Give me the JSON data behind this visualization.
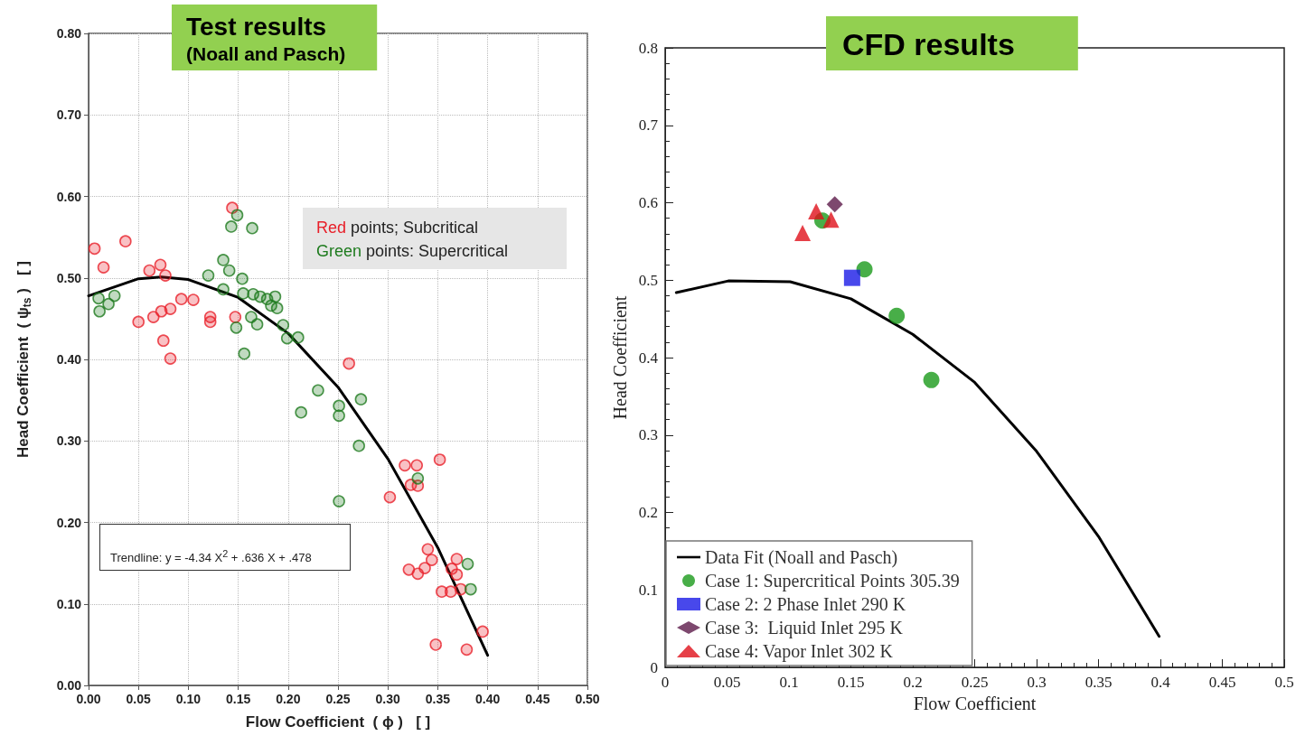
{
  "chart_data": [
    {
      "type": "scatter",
      "title": "Test results",
      "subtitle": "(Noall and Pasch)",
      "xlabel": "Flow Coefficient  ( ϕ )   [ ]",
      "ylabel": "Head Coefficient  ( ψ$_{ts}$ )   [ ]",
      "annotations": [
        "Red points; Subcritical",
        "Green points: Supercritical",
        "Trendline: y = -4.34 X$^{2}$ + .636 X + .478"
      ],
      "xlim": [
        0,
        0.5
      ],
      "xticks": [
        {
          "value": 0,
          "label": "0.00"
        },
        {
          "value": 0.05,
          "label": "0.05"
        },
        {
          "value": 0.1,
          "label": "0.10"
        },
        {
          "value": 0.15,
          "label": "0.15"
        },
        {
          "value": 0.2,
          "label": "0.20"
        },
        {
          "value": 0.25,
          "label": "0.25"
        },
        {
          "value": 0.3,
          "label": "0.30"
        },
        {
          "value": 0.35,
          "label": "0.35"
        },
        {
          "value": 0.4,
          "label": "0.40"
        },
        {
          "value": 0.45,
          "label": "0.45"
        },
        {
          "value": 0.5,
          "label": "0.50"
        }
      ],
      "ylim": [
        0,
        0.8
      ],
      "yticks": [
        {
          "value": 0,
          "label": "0.00"
        },
        {
          "value": 0.1,
          "label": "0.10"
        },
        {
          "value": 0.2,
          "label": "0.20"
        },
        {
          "value": 0.3,
          "label": "0.30"
        },
        {
          "value": 0.4,
          "label": "0.40"
        },
        {
          "value": 0.5,
          "label": "0.50"
        },
        {
          "value": 0.6,
          "label": "0.60"
        },
        {
          "value": 0.7,
          "label": "0.70"
        },
        {
          "value": 0.8,
          "label": "0.80"
        }
      ],
      "grid": true,
      "marker": "circle",
      "series": [
        {
          "color": "#e8202a",
          "x": [
            0.006,
            0.015,
            0.037,
            0.05,
            0.061,
            0.065,
            0.072,
            0.073,
            0.077,
            0.075,
            0.082,
            0.082,
            0.093,
            0.105,
            0.122,
            0.122,
            0.147,
            0.144,
            0.261,
            0.317,
            0.329,
            0.352,
            0.302,
            0.323,
            0.33,
            0.34,
            0.344,
            0.321,
            0.33,
            0.337,
            0.364,
            0.369,
            0.369,
            0.354,
            0.363,
            0.373,
            0.348,
            0.379,
            0.395
          ],
          "values": [
            0.536,
            0.513,
            0.545,
            0.446,
            0.509,
            0.452,
            0.516,
            0.459,
            0.503,
            0.423,
            0.401,
            0.462,
            0.474,
            0.473,
            0.452,
            0.446,
            0.452,
            0.586,
            0.395,
            0.27,
            0.27,
            0.277,
            0.231,
            0.246,
            0.245,
            0.167,
            0.154,
            0.142,
            0.137,
            0.144,
            0.143,
            0.155,
            0.136,
            0.115,
            0.115,
            0.118,
            0.05,
            0.044,
            0.066
          ]
        },
        {
          "color": "#1e7b1e",
          "x": [
            0.01,
            0.011,
            0.02,
            0.026,
            0.12,
            0.135,
            0.135,
            0.141,
            0.143,
            0.149,
            0.164,
            0.154,
            0.148,
            0.163,
            0.169,
            0.156,
            0.155,
            0.165,
            0.172,
            0.179,
            0.183,
            0.189,
            0.187,
            0.195,
            0.199,
            0.21,
            0.23,
            0.213,
            0.251,
            0.251,
            0.273,
            0.271,
            0.251,
            0.33,
            0.38,
            0.383
          ],
          "values": [
            0.475,
            0.459,
            0.468,
            0.478,
            0.503,
            0.522,
            0.486,
            0.509,
            0.563,
            0.577,
            0.561,
            0.499,
            0.439,
            0.452,
            0.443,
            0.407,
            0.481,
            0.48,
            0.477,
            0.474,
            0.466,
            0.463,
            0.477,
            0.442,
            0.426,
            0.427,
            0.362,
            0.335,
            0.343,
            0.331,
            0.351,
            0.294,
            0.226,
            0.254,
            0.149,
            0.118
          ]
        },
        {
          "type": "line",
          "marker": "none",
          "color": "#000000",
          "x": [
            0,
            0.05,
            0.073,
            0.1,
            0.15,
            0.2,
            0.25,
            0.3,
            0.35,
            0.4
          ],
          "values": [
            0.478,
            0.499,
            0.501,
            0.498,
            0.476,
            0.432,
            0.366,
            0.278,
            0.169,
            0.037
          ]
        }
      ]
    },
    {
      "type": "scatter",
      "title": "CFD results",
      "xlabel": "Flow Coefficient",
      "ylabel": "Head Coefficient",
      "xlim": [
        0,
        0.5
      ],
      "xticks": [
        0,
        0.05,
        0.1,
        0.15,
        0.2,
        0.25,
        0.3,
        0.35,
        0.4,
        0.45,
        0.5
      ],
      "ylim": [
        0,
        0.8
      ],
      "yticks": [
        0,
        0.1,
        0.2,
        0.3,
        0.4,
        0.5,
        0.6,
        0.7,
        0.8
      ],
      "legend": "bottom left",
      "series": [
        {
          "type": "line",
          "marker": "none",
          "name": "Data Fit (Noall and Pasch)",
          "color": "#000000",
          "x": [
            0.009,
            0.051,
            0.101,
            0.15,
            0.2,
            0.25,
            0.3,
            0.35,
            0.399
          ],
          "values": [
            0.484,
            0.499,
            0.498,
            0.476,
            0.43,
            0.368,
            0.279,
            0.169,
            0.04
          ]
        },
        {
          "name": "Case 1: Supercritical Points 305.39",
          "marker": "circle",
          "color": "#1a9a1a",
          "x": [
            0.127,
            0.161,
            0.187,
            0.215
          ],
          "values": [
            0.577,
            0.514,
            0.454,
            0.371
          ]
        },
        {
          "name": "Case 2: 2 Phase Inlet 290 K",
          "marker": "square",
          "color": "#1a1ae6",
          "x": [
            0.151
          ],
          "values": [
            0.503
          ]
        },
        {
          "name": "Case 3:  Liquid Inlet 295 K",
          "marker": "diamond",
          "color": "#5c1a4a",
          "x": [
            0.137
          ],
          "values": [
            0.598
          ]
        },
        {
          "name": "Case 4: Vapor Inlet 302 K",
          "marker": "triangle",
          "color": "#e0101a",
          "x": [
            0.111,
            0.122,
            0.134
          ],
          "values": [
            0.561,
            0.589,
            0.578
          ]
        }
      ]
    }
  ]
}
